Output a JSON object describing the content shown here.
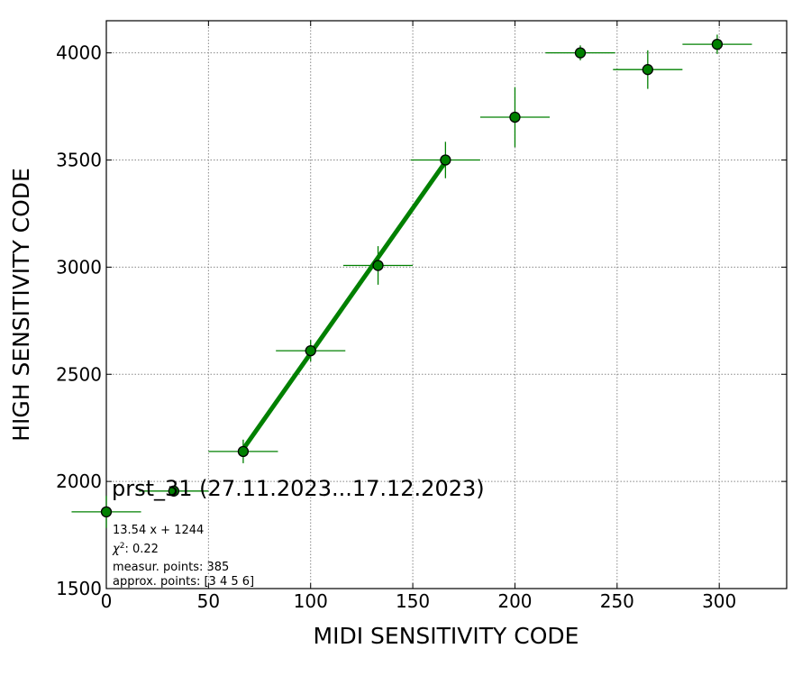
{
  "chart_data": {
    "type": "scatter",
    "title": "prst_31 (27.11.2023...17.12.2023)",
    "xlabel": "MIDI SENSITIVITY CODE",
    "ylabel": "HIGH SENSITIVITY CODE",
    "xlim": [
      0,
      333
    ],
    "ylim": [
      1500,
      4150
    ],
    "xticks": [
      0,
      50,
      100,
      150,
      200,
      250,
      300
    ],
    "yticks": [
      1500,
      2000,
      2500,
      3000,
      3500,
      4000
    ],
    "grid": true,
    "colors": {
      "points": "#008000",
      "errorbars": "#008000",
      "fit": "#008000",
      "marker_edge": "#000000"
    },
    "series": [
      {
        "x": [
          0,
          33,
          67,
          100,
          133,
          166,
          200,
          232,
          265,
          299
        ],
        "y": [
          1858,
          1955,
          2140,
          2610,
          3008,
          3500,
          3700,
          4000,
          3922,
          4040
        ],
        "xerr": [
          17,
          17,
          17,
          17,
          17,
          17,
          17,
          17,
          17,
          17
        ],
        "yerr": [
          75,
          20,
          55,
          50,
          90,
          85,
          140,
          35,
          90,
          45
        ]
      }
    ],
    "fit": {
      "slope": 13.54,
      "intercept": 1244,
      "x_range": [
        67,
        166
      ]
    },
    "annotations": [
      "13.54 x + 1244",
      ": 0.22",
      "measur. points: 385",
      "approx. points: [3 4 5 6]"
    ]
  }
}
